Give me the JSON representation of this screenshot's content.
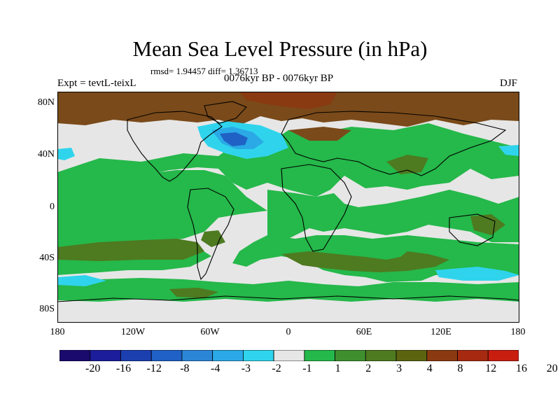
{
  "title": "Mean Sea Level Pressure (in hPa)",
  "stats": "rmsd= 1.94457 diff= 1.36713",
  "expt": "Expt = tevtL-teixL",
  "period": "0076kyr BP - 0076kyr BP",
  "season": "DJF",
  "y_ticks": [
    "80N",
    "40N",
    "0",
    "40S",
    "80S"
  ],
  "x_ticks": [
    "180",
    "120W",
    "60W",
    "0",
    "60E",
    "120E",
    "180"
  ],
  "colorbar": {
    "labels": [
      "-20",
      "-16",
      "-12",
      "-8",
      "-4",
      "-3",
      "-2",
      "-1",
      "1",
      "2",
      "3",
      "4",
      "8",
      "12",
      "16",
      "20"
    ],
    "colors": [
      "#1a0a6e",
      "#1b1d9a",
      "#1c3fb0",
      "#1f61c4",
      "#2b86d6",
      "#2aa9e6",
      "#2fd4ec",
      "#e6e6e6",
      "#25b84a",
      "#3f8f2e",
      "#4e7a20",
      "#5c6410",
      "#8a3a10",
      "#a52a10",
      "#c81e10"
    ]
  },
  "map_colors": {
    "zero": "#e6e6e6",
    "pos_small": "#25b84a",
    "pos_mid": "#4e7a20",
    "pos_large": "#7a4a1a",
    "pos_high": "#8a3a10",
    "neg_small": "#2fd4ec",
    "neg_mid": "#2aa9e6",
    "neg_large": "#1f61c4"
  }
}
